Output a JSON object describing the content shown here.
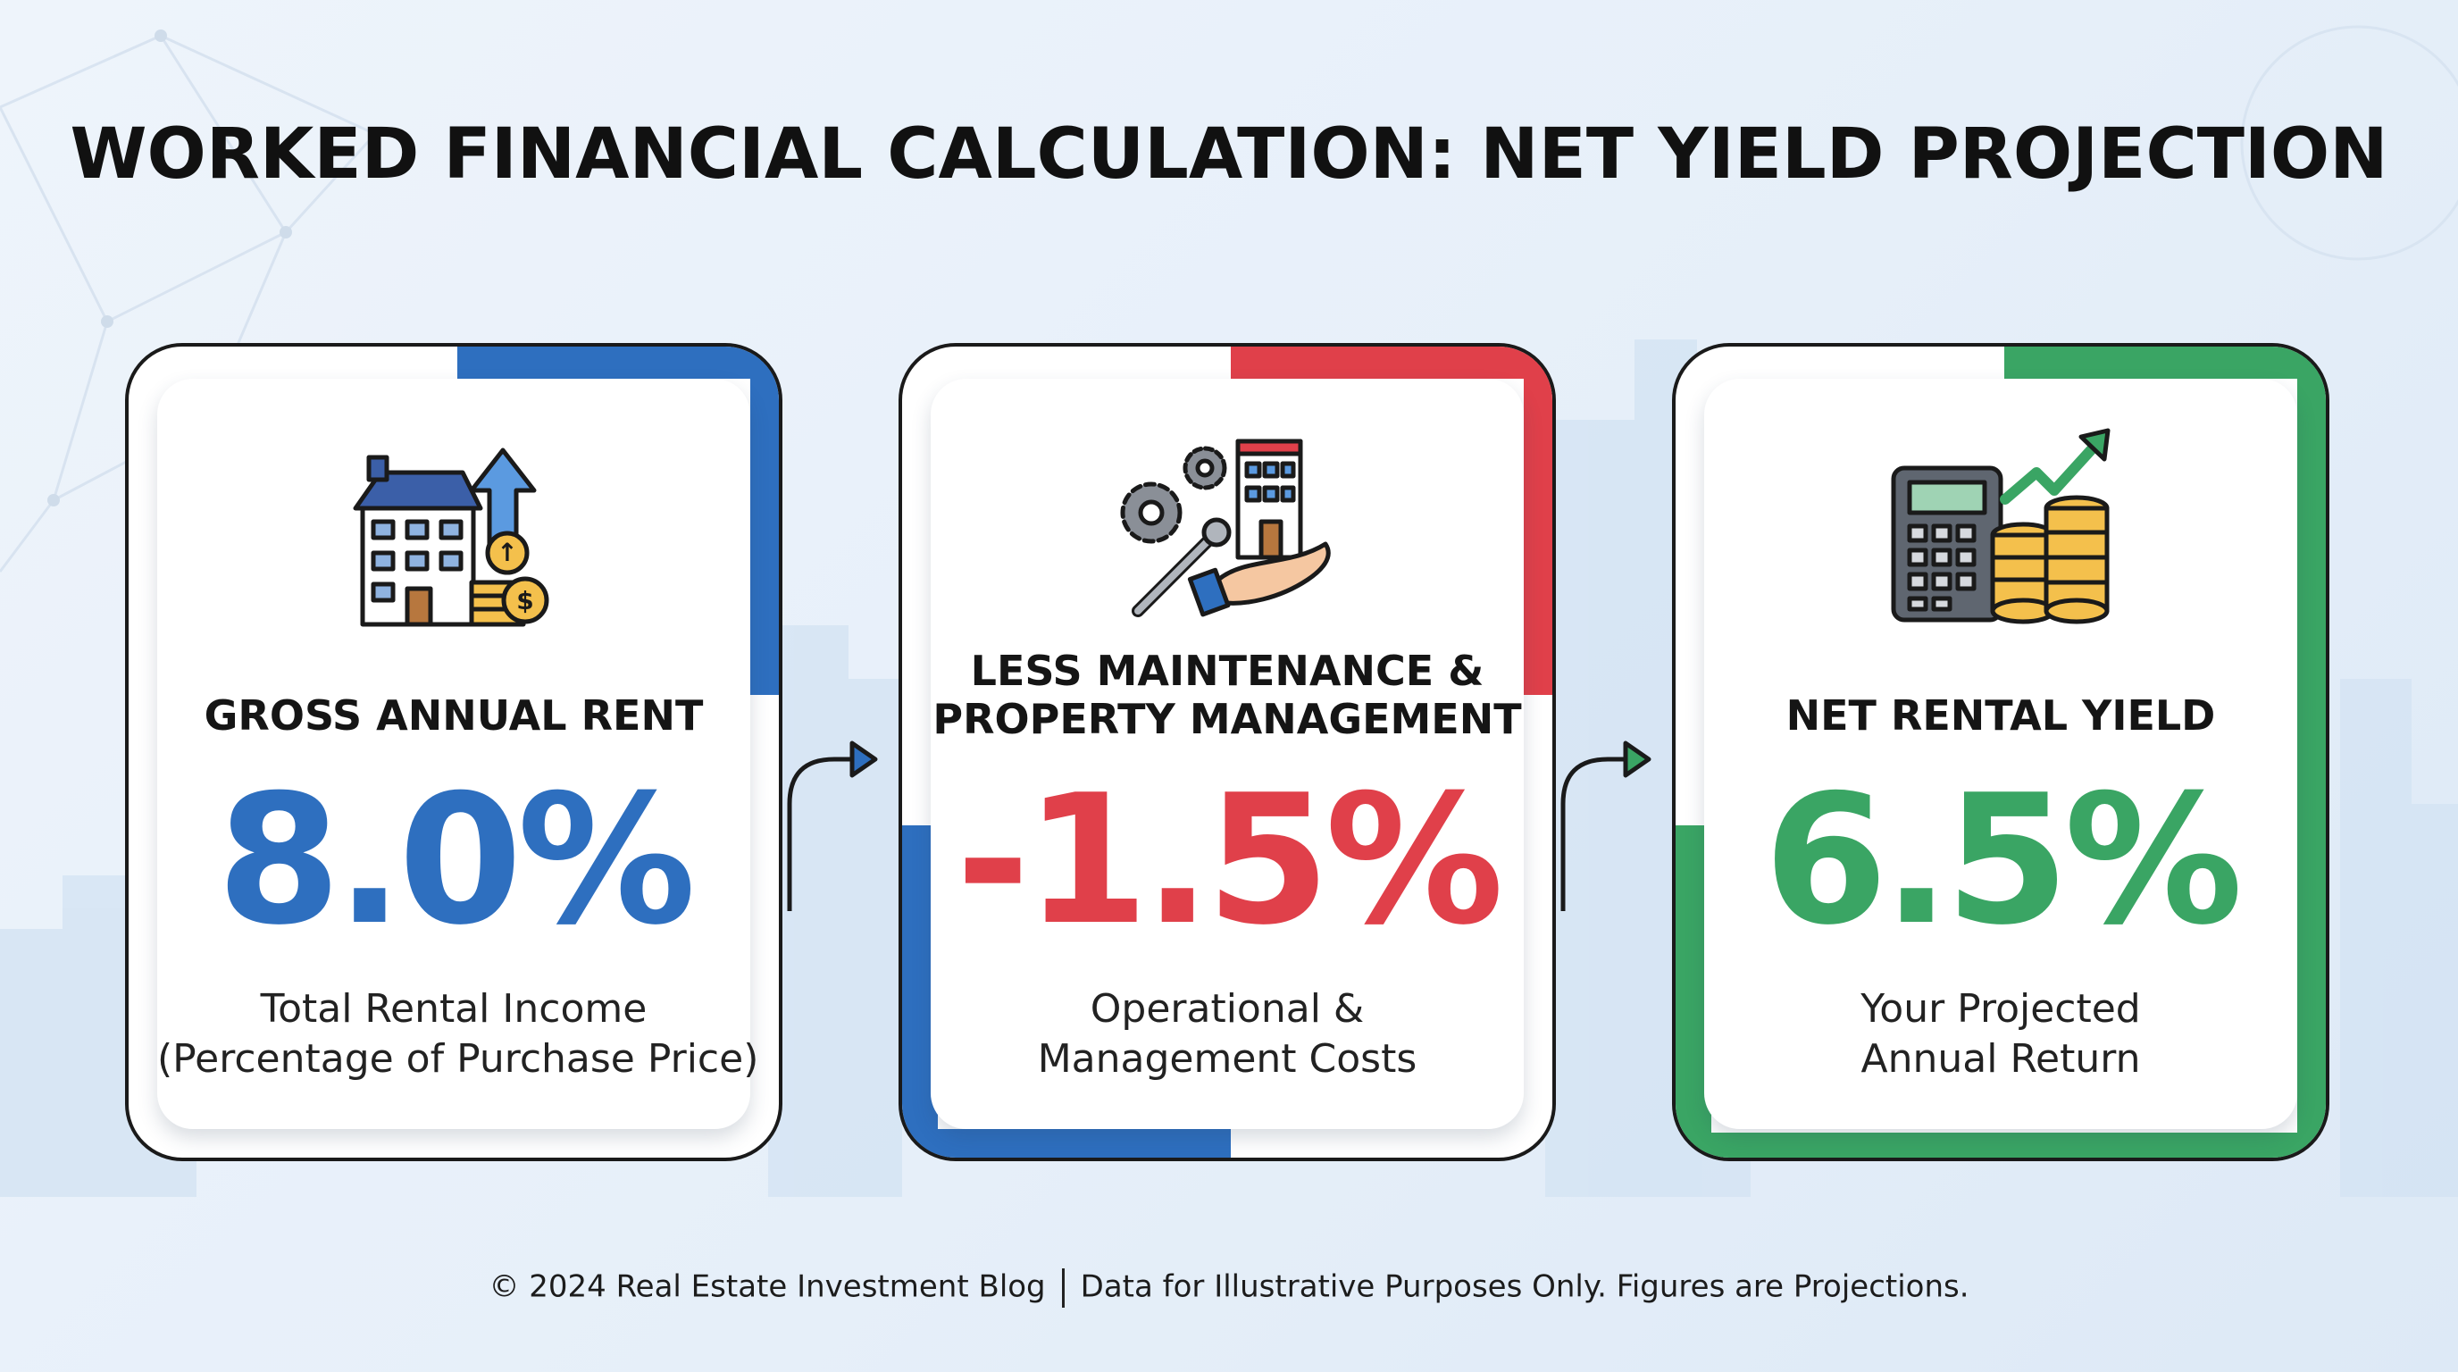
{
  "title": "WORKED FINANCIAL CALCULATION: NET YIELD PROJECTION",
  "colors": {
    "blue": "#2e6fbf",
    "red": "#e0404a",
    "green": "#3aa564",
    "outline": "#1a1a1a",
    "background": "#e8f0f9"
  },
  "cards": [
    {
      "heading_lines": [
        "GROSS ANNUAL RENT"
      ],
      "value": "8.0%",
      "description_lines": [
        "Total Rental Income",
        "(Percentage of Purchase Price)"
      ],
      "icon": "house-with-coins-and-up-arrow-icon",
      "accent": "#2e6fbf",
      "value_color": "#2e6fbf"
    },
    {
      "heading_lines": [
        "LESS MAINTENANCE &",
        "PROPERTY MANAGEMENT"
      ],
      "value": "-1.5%",
      "description_lines": [
        "Operational &",
        "Management Costs"
      ],
      "icon": "gears-wrench-building-on-hand-icon",
      "accent": "#e0404a",
      "value_color": "#e0404a"
    },
    {
      "heading_lines": [
        "NET RENTAL YIELD"
      ],
      "value": "6.5%",
      "description_lines": [
        "Your Projected",
        "Annual Return"
      ],
      "icon": "calculator-coins-trend-arrow-icon",
      "accent": "#3aa564",
      "value_color": "#3aa564"
    }
  ],
  "footer": {
    "left": "© 2024 Real Estate Investment Blog",
    "right": "Data for Illustrative Purposes Only. Figures are Projections."
  }
}
